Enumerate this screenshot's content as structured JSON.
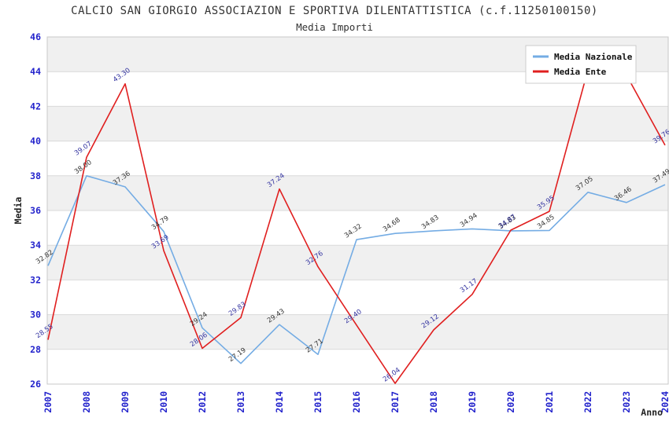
{
  "chart_data": {
    "type": "line",
    "title": "CALCIO SAN GIORGIO ASSOCIAZION E SPORTIVA DILENTATTISTICA (c.f.11250100150)",
    "subtitle": "Media Importi",
    "xlabel": "Anno",
    "ylabel": "Media",
    "ylim": [
      26,
      46
    ],
    "ytick_step": 2,
    "grid": true,
    "legend_position": "top-right",
    "colors": {
      "axis_tick": "#2323cc",
      "band_gray": "#f0f0f0",
      "gridline": "#d9d9d9",
      "plot_border": "#c9c9c9",
      "legend_border": "#cccccc",
      "legend_text": "#111111",
      "axis_title": "#222222"
    },
    "categories": [
      "2007",
      "2008",
      "2009",
      "2010",
      "2012",
      "2013",
      "2014",
      "2015",
      "2016",
      "2017",
      "2018",
      "2019",
      "2020",
      "2021",
      "2022",
      "2023",
      "2024"
    ],
    "series": [
      {
        "name": "Media Nazionale",
        "color": "#74ace4",
        "label_color": "#333333",
        "values": [
          32.82,
          38.0,
          37.36,
          34.79,
          29.24,
          27.19,
          29.43,
          27.71,
          34.32,
          34.68,
          34.83,
          34.94,
          34.83,
          34.85,
          37.05,
          36.46,
          37.49
        ],
        "labels": [
          "32.82",
          "38.00",
          "37.36",
          "34.79",
          "29.24",
          "27.19",
          "29.43",
          "27.71",
          "34.32",
          "34.68",
          "34.83",
          "34.94",
          "34.83",
          "34.85",
          "37.05",
          "36.46",
          "37.49"
        ]
      },
      {
        "name": "Media Ente",
        "color": "#e01f1f",
        "label_color": "#3333a0",
        "values": [
          28.55,
          39.07,
          43.3,
          33.69,
          28.06,
          29.83,
          37.24,
          32.76,
          29.4,
          26.04,
          29.12,
          31.17,
          34.87,
          35.95,
          44.1,
          43.8,
          39.76
        ],
        "labels": [
          "28.55",
          "39.07",
          "43.30",
          "33.69",
          "28.06",
          "29.83",
          "37.24",
          "32.76",
          "29.40",
          "26.04",
          "29.12",
          "31.17",
          "34.87",
          "35.95",
          "",
          "",
          "39.76"
        ]
      }
    ]
  }
}
